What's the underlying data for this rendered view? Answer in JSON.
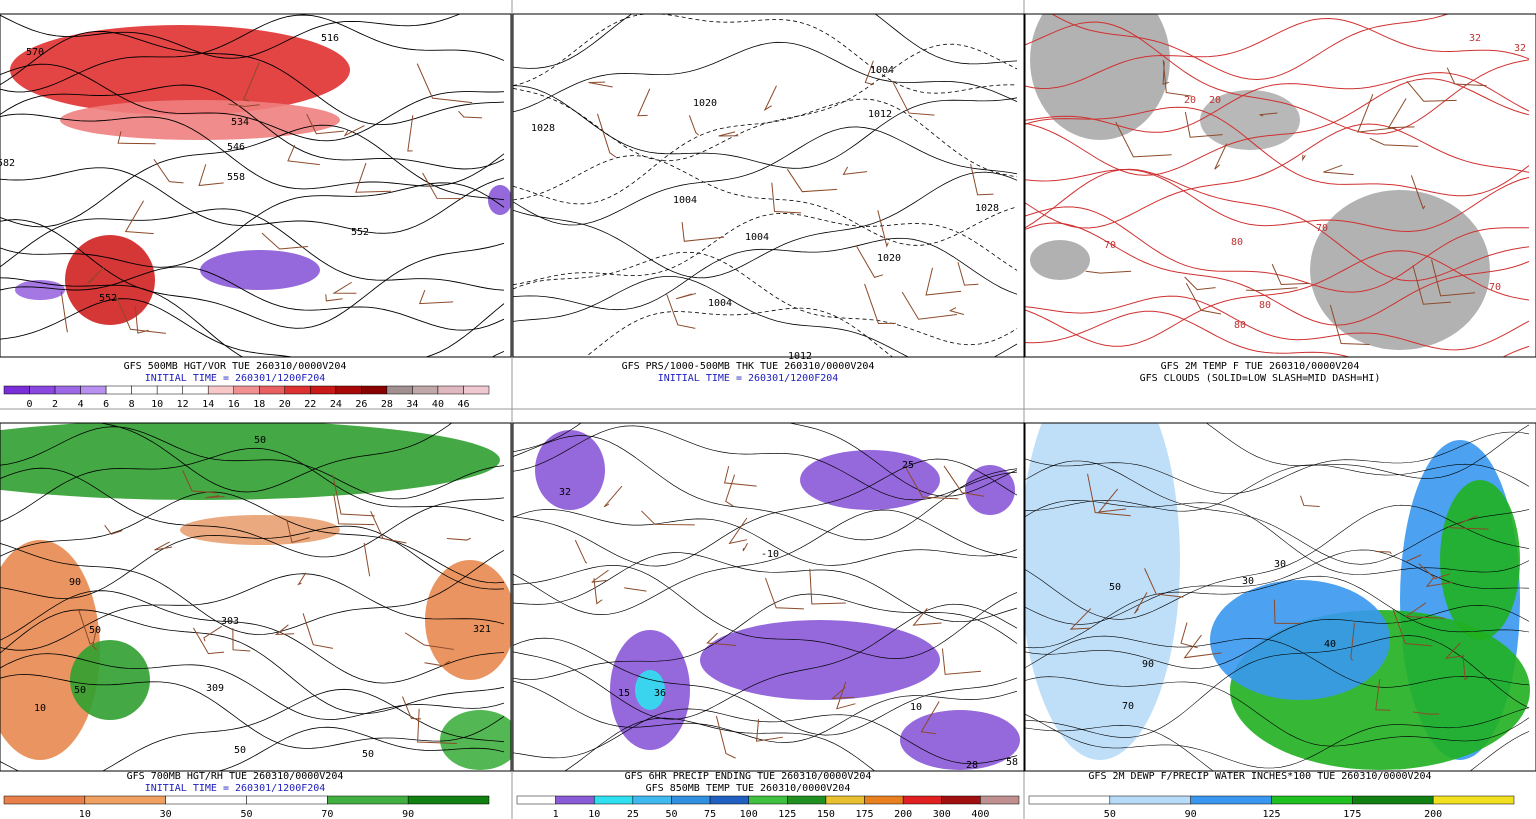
{
  "panels": [
    {
      "captions": [
        "GFS 500MB HGT/VOR TUE 260310/0000V204",
        "INITIAL TIME = 260301/1200F204"
      ],
      "map_labels": [
        "570",
        "516",
        "534",
        "546",
        "558",
        "552",
        "582",
        "552"
      ],
      "colorbar": {
        "labels": [
          "0",
          "2",
          "4",
          "6",
          "8",
          "10",
          "12",
          "14",
          "16",
          "18",
          "20",
          "22",
          "24",
          "26",
          "28",
          "34",
          "40",
          "46"
        ],
        "colors": [
          "#7a2ed8",
          "#8a48e0",
          "#9d68e6",
          "#b890ee",
          "#ffffff",
          "#ffffff",
          "#ffffff",
          "#ffffff",
          "#f8c8c8",
          "#f09090",
          "#e86060",
          "#dd3030",
          "#c81818",
          "#a80808",
          "#880000",
          "#a09090",
          "#c0a8a8",
          "#e0b8c0",
          "#f0c8d0"
        ]
      }
    },
    {
      "captions": [
        "GFS PRS/1000-500MB THK TUE 260310/0000V204",
        "INITIAL TIME = 260301/1200F204"
      ],
      "map_labels": [
        "1028",
        "1020",
        "1012",
        "1004",
        "1004",
        "1004",
        "1012",
        "1028",
        "1020",
        "1004"
      ]
    },
    {
      "captions": [
        "GFS 2M TEMP F TUE 260310/0000V204",
        "GFS CLOUDS (SOLID=LOW SLASH=MID DASH=HI)"
      ],
      "map_labels": [
        "32",
        "20",
        "20",
        "70",
        "80",
        "80",
        "80",
        "70",
        "70",
        "32"
      ]
    },
    {
      "captions": [
        "GFS 700MB HGT/RH TUE 260310/0000V204",
        "INITIAL TIME = 260301/1200F204"
      ],
      "map_labels": [
        "50",
        "90",
        "50",
        "303",
        "321",
        "50",
        "309",
        "50",
        "10",
        "50"
      ],
      "colorbar": {
        "labels": [
          "10",
          "30",
          "50",
          "70",
          "90"
        ],
        "colors": [
          "#e8804a",
          "#f0a060",
          "#ffffff",
          "#ffffff",
          "#40b040",
          "#108010"
        ]
      }
    },
    {
      "captions": [
        "GFS 6HR PRECIP ENDING TUE 260310/0000V204",
        "GFS 850MB TEMP TUE 260310/0000V204"
      ],
      "map_labels": [
        "32",
        "25",
        "-10",
        "15",
        "36",
        "10",
        "28",
        "58"
      ],
      "colorbar": {
        "labels": [
          "1",
          "10",
          "25",
          "50",
          "75",
          "100",
          "125",
          "150",
          "175",
          "200",
          "300",
          "400"
        ],
        "colors": [
          "#ffffff",
          "#8a5ad8",
          "#30e0f0",
          "#40b8f0",
          "#3090e0",
          "#2060c0",
          "#40c040",
          "#209020",
          "#e8c030",
          "#e88020",
          "#e02020",
          "#a01010",
          "#c09090"
        ]
      }
    },
    {
      "captions": [
        "GFS 2M DEWP F/PRECIP WATER INCHES*100 TUE 260310/0000V204"
      ],
      "map_labels": [
        "50",
        "30",
        "30",
        "40",
        "90",
        "70"
      ],
      "colorbar": {
        "labels": [
          "50",
          "90",
          "125",
          "175",
          "200"
        ],
        "colors": [
          "#ffffff",
          "#b8dcf8",
          "#3898f0",
          "#20c020",
          "#108010",
          "#f0e020"
        ]
      }
    }
  ]
}
